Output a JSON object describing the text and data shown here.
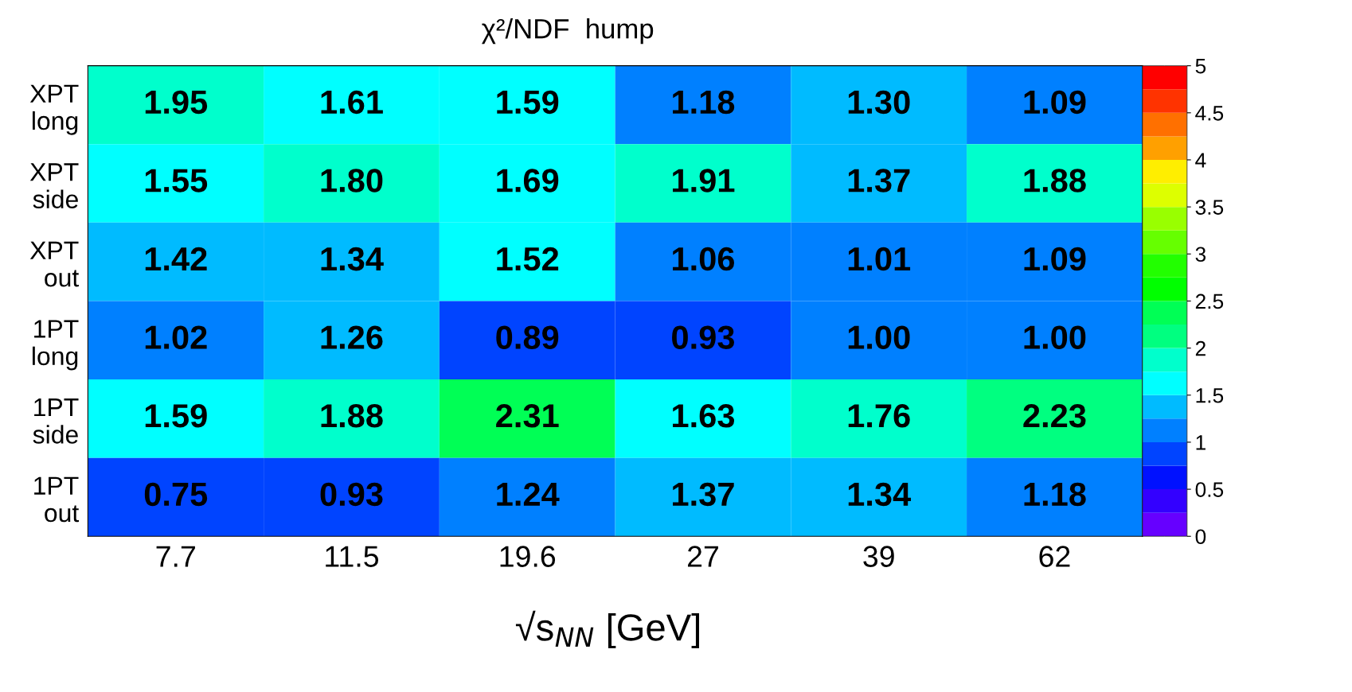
{
  "chart_data": {
    "type": "heatmap",
    "title": "χ²/NDF  hump",
    "xlabel": "√s$_{NN}$ [GeV]",
    "categories": [
      "7.7",
      "11.5",
      "19.6",
      "27",
      "39",
      "62"
    ],
    "y_categories": [
      "XPT\nlong",
      "XPT\nside",
      "XPT\nout",
      "1PT\nlong",
      "1PT\nside",
      "1PT\nout"
    ],
    "cells": [
      [
        1.95,
        1.61,
        1.59,
        1.18,
        1.3,
        1.09
      ],
      [
        1.55,
        1.8,
        1.69,
        1.91,
        1.37,
        1.88
      ],
      [
        1.42,
        1.34,
        1.52,
        1.06,
        1.01,
        1.09
      ],
      [
        1.02,
        1.26,
        0.89,
        0.93,
        1.0,
        1.0
      ],
      [
        1.59,
        1.88,
        2.31,
        1.63,
        1.76,
        2.23
      ],
      [
        0.75,
        0.93,
        1.24,
        1.37,
        1.34,
        1.18
      ]
    ],
    "cell_labels": [
      [
        "1.95",
        "1.61",
        "1.59",
        "1.18",
        "1.30",
        "1.09"
      ],
      [
        "1.55",
        "1.80",
        "1.69",
        "1.91",
        "1.37",
        "1.88"
      ],
      [
        "1.42",
        "1.34",
        "1.52",
        "1.06",
        "1.01",
        "1.09"
      ],
      [
        "1.02",
        "1.26",
        "0.89",
        "0.93",
        "1.00",
        "1.00"
      ],
      [
        "1.59",
        "1.88",
        "2.31",
        "1.63",
        "1.76",
        "2.23"
      ],
      [
        "0.75",
        "0.93",
        "1.24",
        "1.37",
        "1.34",
        "1.18"
      ]
    ],
    "clim": [
      0,
      5
    ],
    "cticks": [
      0,
      0.5,
      1,
      1.5,
      2,
      2.5,
      3,
      3.5,
      4,
      4.5,
      5
    ]
  }
}
